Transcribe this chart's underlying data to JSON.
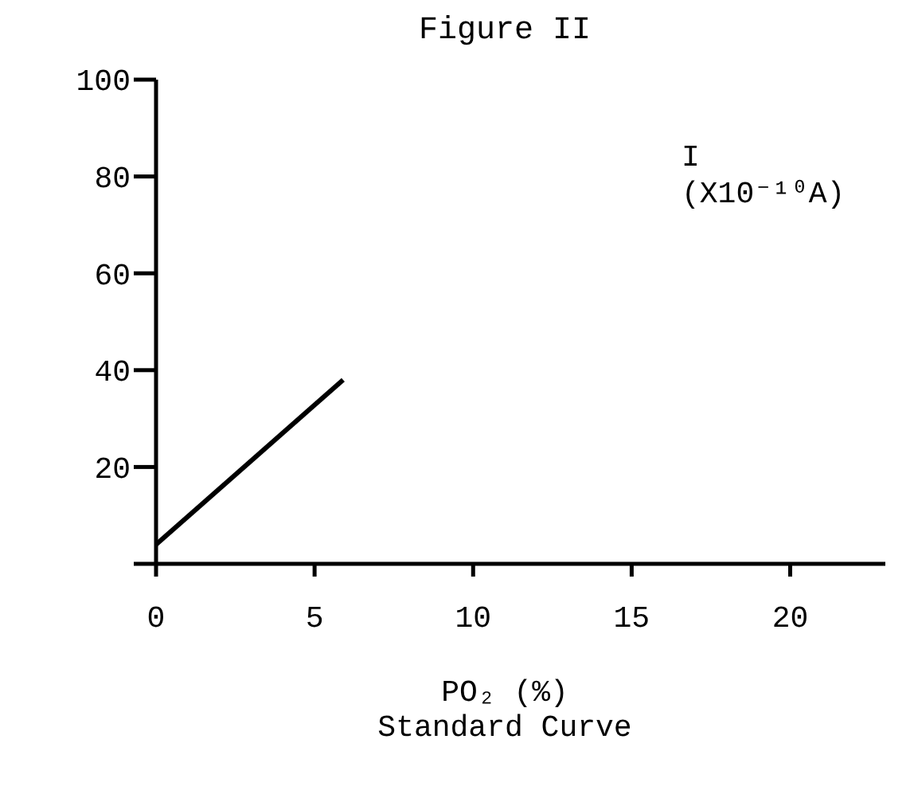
{
  "chart_data": {
    "type": "line",
    "title": "Figure II",
    "xlabel": "PO₂ (%)",
    "ylabel": "I (X10⁻¹⁰A)",
    "annotations": [
      "Standard Curve"
    ],
    "x": [
      0,
      5.9
    ],
    "series": [
      {
        "color": "#000000",
        "values": [
          4,
          38
        ]
      }
    ],
    "xlim": [
      0,
      23
    ],
    "xticks": [
      0,
      5,
      10,
      15,
      20
    ],
    "ylim": [
      0,
      100
    ],
    "yticks": [
      {
        "value": 0,
        "label": null
      },
      20,
      40,
      60,
      80,
      100
    ],
    "grid": false,
    "marker": "none",
    "line_style": "solid"
  }
}
